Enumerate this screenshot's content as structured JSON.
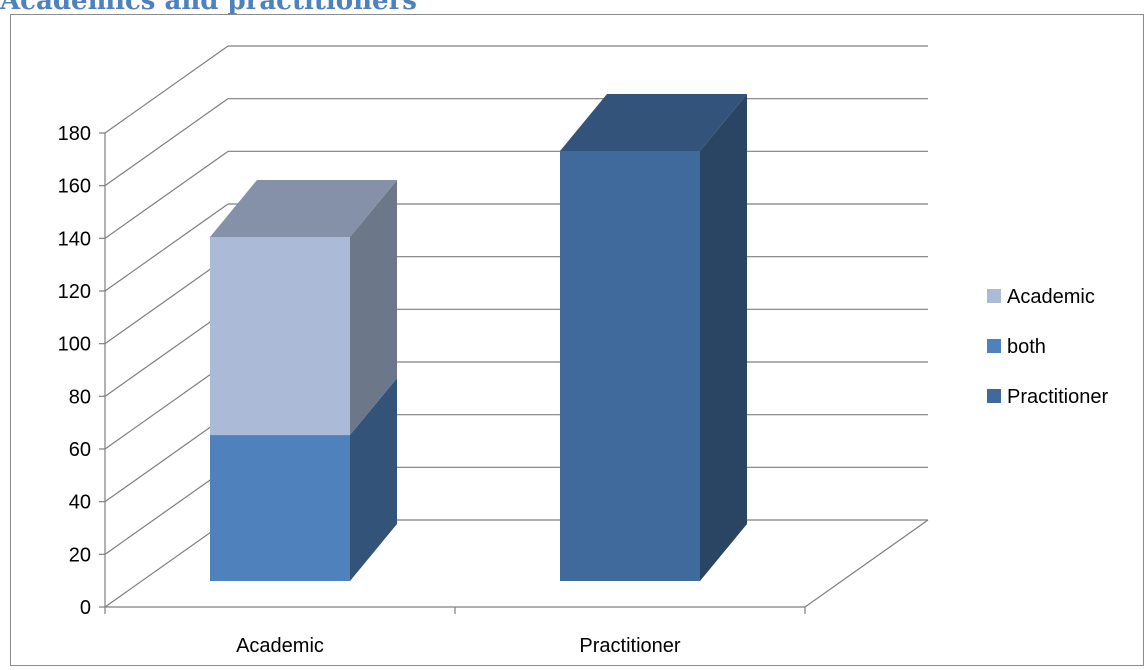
{
  "header": {
    "title": "Academics and practitioners"
  },
  "colors": {
    "academic": "#aabad7",
    "both": "#4f81bd",
    "practitioner": "#416a9c",
    "grid": "#7f7f7f"
  },
  "chart_data": {
    "type": "bar",
    "stacked": true,
    "three_d": true,
    "categories": [
      "Academic",
      "Practitioner"
    ],
    "series": [
      {
        "name": "Practitioner",
        "values": [
          0,
          165
        ],
        "color": "#416a9c"
      },
      {
        "name": "both",
        "values": [
          56,
          0
        ],
        "color": "#4f81bd"
      },
      {
        "name": "Academic",
        "values": [
          76,
          0
        ],
        "color": "#aabad7"
      }
    ],
    "legend_order": [
      "Academic",
      "both",
      "Practitioner"
    ],
    "legend_position": "right",
    "ylim": [
      0,
      180
    ],
    "y_ticks": [
      0,
      20,
      40,
      60,
      80,
      100,
      120,
      140,
      160,
      180
    ],
    "grid": true,
    "title": "",
    "xlabel": "",
    "ylabel": ""
  }
}
